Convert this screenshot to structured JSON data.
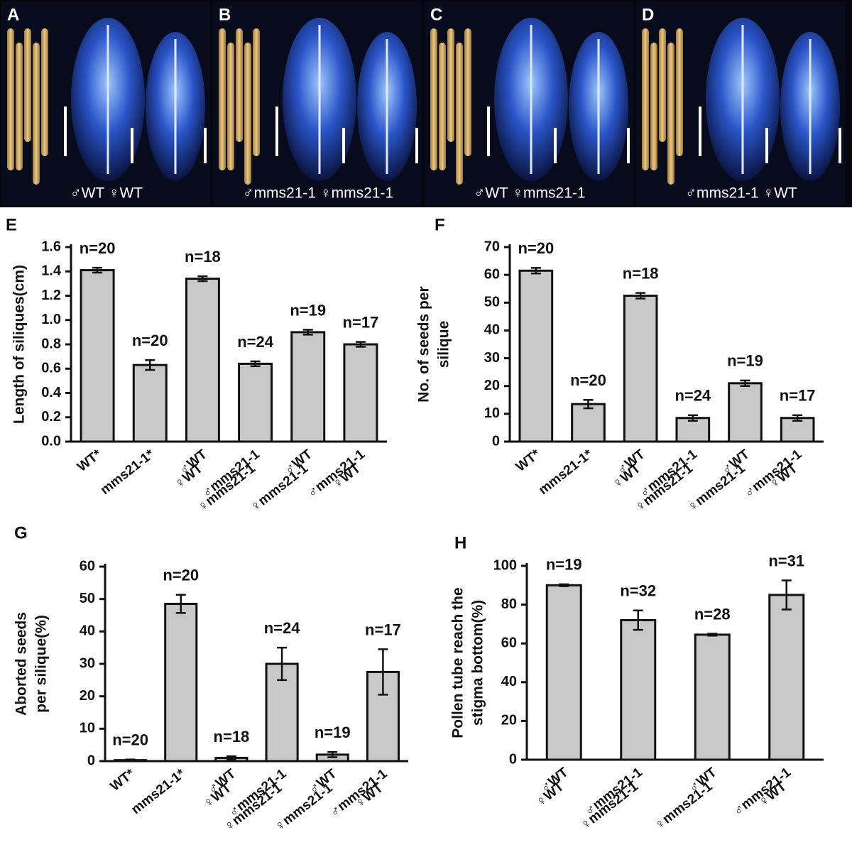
{
  "photo_panels": [
    {
      "letter": "A",
      "caption": "♂WT ♀WT"
    },
    {
      "letter": "B",
      "caption": "♂mms21-1 ♀mms21-1"
    },
    {
      "letter": "C",
      "caption": "♂WT ♀mms21-1"
    },
    {
      "letter": "D",
      "caption": "♂mms21-1 ♀WT"
    }
  ],
  "chart_data": [
    {
      "type": "bar",
      "panel": "E",
      "ylabel": [
        "Length of siliques(cm)"
      ],
      "categories": [
        [
          "WT*"
        ],
        [
          "mms21-1*"
        ],
        [
          "♂WT",
          "♀WT"
        ],
        [
          "♂mms21-1",
          "♀mms21-1"
        ],
        [
          "♂WT",
          "♀mms21-1"
        ],
        [
          "♂mms21-1",
          "♀WT"
        ]
      ],
      "values": [
        1.41,
        0.63,
        1.34,
        0.64,
        0.9,
        0.8
      ],
      "errors": [
        0.02,
        0.04,
        0.02,
        0.02,
        0.02,
        0.02
      ],
      "annotations": [
        "n=20",
        "n=20",
        "n=18",
        "n=24",
        "n=19",
        "n=17"
      ],
      "color": "#c8c8c8",
      "ylim": [
        0,
        1.6
      ],
      "yticks": [
        {
          "value": 0,
          "label": "0.0"
        },
        0.2,
        0.4,
        0.6,
        0.8,
        {
          "value": 1,
          "label": "1.0"
        },
        1.2,
        1.4,
        1.6
      ]
    },
    {
      "type": "bar",
      "panel": "F",
      "ylabel": [
        "No. of seeds per",
        "silique"
      ],
      "categories": [
        [
          "WT*"
        ],
        [
          "mms21-1*"
        ],
        [
          "♂WT",
          "♀WT"
        ],
        [
          "♂mms21-1",
          "♀mms21-1"
        ],
        [
          "♂WT",
          "♀mms21-1"
        ],
        [
          "♂mms21-1",
          "♀WT"
        ]
      ],
      "values": [
        61.5,
        13.5,
        52.5,
        8.5,
        21,
        8.5
      ],
      "errors": [
        1,
        1.5,
        1,
        1,
        1,
        1
      ],
      "annotations": [
        "n=20",
        "n=20",
        "n=18",
        "n=24",
        "n=19",
        "n=17"
      ],
      "color": "#c8c8c8",
      "ylim": [
        0,
        70
      ],
      "yticks": [
        0,
        10,
        20,
        30,
        40,
        50,
        60,
        70
      ]
    },
    {
      "type": "bar",
      "panel": "G",
      "ylabel": [
        "Aborted seeds",
        "per silique(%)"
      ],
      "categories": [
        [
          "WT*"
        ],
        [
          "mms21-1*"
        ],
        [
          "♂WT",
          "♀WT"
        ],
        [
          "♂mms21-1",
          "♀mms21-1"
        ],
        [
          "♂WT",
          "♀mms21-1"
        ],
        [
          "♂mms21-1",
          "♀WT"
        ]
      ],
      "values": [
        0.3,
        48.5,
        1,
        30,
        2,
        27.5
      ],
      "errors": [
        0.2,
        2.8,
        0.5,
        5,
        0.8,
        7
      ],
      "annotations": [
        "n=20",
        "n=20",
        "n=18",
        "n=24",
        "n=19",
        "n=17"
      ],
      "color": "#c8c8c8",
      "ylim": [
        0,
        60
      ],
      "yticks": [
        0,
        10,
        20,
        30,
        40,
        50,
        60
      ]
    },
    {
      "type": "bar",
      "panel": "H",
      "ylabel": [
        "Pollen tube reach the",
        "stigma bottom(%)"
      ],
      "categories": [
        [
          "♂WT",
          "♀WT"
        ],
        [
          "♂mms21-1",
          "♀mms21-1"
        ],
        [
          "♂WT",
          "♀mms21-1"
        ],
        [
          "♂mms21-1",
          "♀WT"
        ]
      ],
      "values": [
        90,
        72,
        64.5,
        85
      ],
      "errors": [
        0.5,
        5,
        0.5,
        7.5
      ],
      "annotations": [
        "n=19",
        "n=32",
        "n=28",
        "n=31"
      ],
      "color": "#c8c8c8",
      "ylim": [
        0,
        100
      ],
      "yticks": [
        0,
        20,
        40,
        60,
        80,
        100
      ]
    }
  ]
}
